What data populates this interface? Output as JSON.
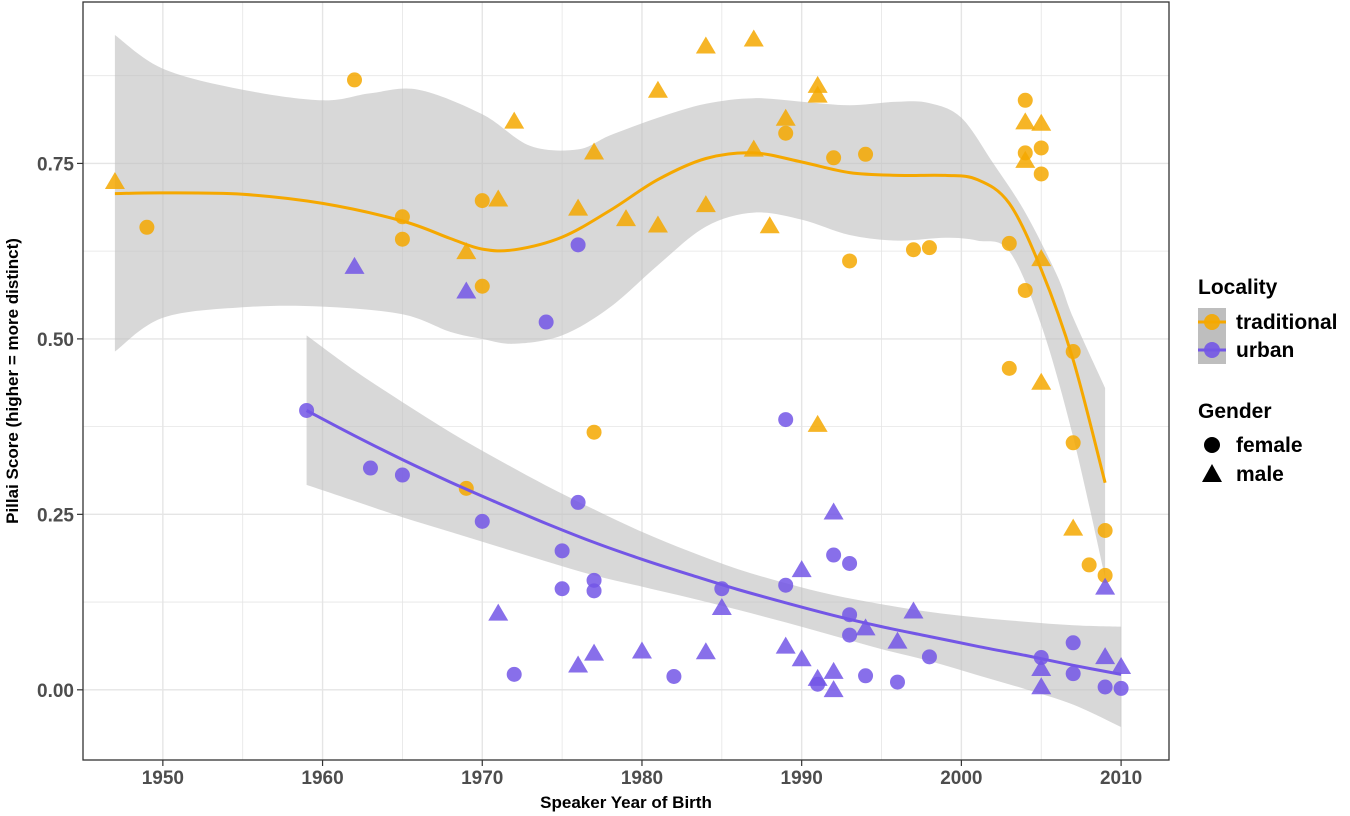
{
  "chart_data": {
    "type": "scatter",
    "title": "",
    "xlabel": "Speaker Year of Birth",
    "ylabel": "Pillai Score (higher = more distinct)",
    "xlim": [
      1945,
      2013
    ],
    "ylim": [
      -0.1,
      0.98
    ],
    "x_ticks": [
      1950,
      1960,
      1970,
      1980,
      1990,
      2000,
      2010
    ],
    "x_tick_labels": [
      "1950",
      "1960",
      "1970",
      "1980",
      "1990",
      "2000",
      "2010"
    ],
    "y_ticks": [
      0,
      0.25,
      0.5,
      0.75
    ],
    "y_tick_labels": [
      "0.00",
      "0.25",
      "0.50",
      "0.75"
    ],
    "grid": true,
    "legend_position": "right",
    "legend": {
      "locality_title": "Locality",
      "gender_title": "Gender",
      "locality_items": [
        {
          "label": "traditional",
          "color": "#F5A800"
        },
        {
          "label": "urban",
          "color": "#7356E6"
        }
      ],
      "gender_items": [
        {
          "label": "female",
          "shape": "circle"
        },
        {
          "label": "male",
          "shape": "triangle"
        }
      ]
    },
    "colors": {
      "traditional": "#F5A800",
      "urban": "#7356E6",
      "ribbon": "#BEBEBE",
      "grid": "#E5E5E5",
      "panel_border": "#333333"
    },
    "series": [
      {
        "name": "traditional",
        "points": [
          {
            "x": 1947,
            "y": 0.725,
            "g": "male"
          },
          {
            "x": 1949,
            "y": 0.659,
            "g": "female"
          },
          {
            "x": 1962,
            "y": 0.869,
            "g": "female"
          },
          {
            "x": 1965,
            "y": 0.674,
            "g": "female"
          },
          {
            "x": 1965,
            "y": 0.642,
            "g": "female"
          },
          {
            "x": 1969,
            "y": 0.625,
            "g": "male"
          },
          {
            "x": 1970,
            "y": 0.697,
            "g": "female"
          },
          {
            "x": 1970,
            "y": 0.575,
            "g": "female"
          },
          {
            "x": 1971,
            "y": 0.7,
            "g": "male"
          },
          {
            "x": 1969,
            "y": 0.287,
            "g": "female"
          },
          {
            "x": 1972,
            "y": 0.811,
            "g": "male"
          },
          {
            "x": 1976,
            "y": 0.687,
            "g": "male"
          },
          {
            "x": 1977,
            "y": 0.767,
            "g": "male"
          },
          {
            "x": 1977,
            "y": 0.367,
            "g": "female"
          },
          {
            "x": 1979,
            "y": 0.672,
            "g": "male"
          },
          {
            "x": 1981,
            "y": 0.855,
            "g": "male"
          },
          {
            "x": 1981,
            "y": 0.663,
            "g": "male"
          },
          {
            "x": 1984,
            "y": 0.918,
            "g": "male"
          },
          {
            "x": 1984,
            "y": 0.692,
            "g": "male"
          },
          {
            "x": 1987,
            "y": 0.928,
            "g": "male"
          },
          {
            "x": 1987,
            "y": 0.771,
            "g": "male"
          },
          {
            "x": 1988,
            "y": 0.662,
            "g": "male"
          },
          {
            "x": 1989,
            "y": 0.815,
            "g": "male"
          },
          {
            "x": 1989,
            "y": 0.793,
            "g": "female"
          },
          {
            "x": 1991,
            "y": 0.862,
            "g": "male"
          },
          {
            "x": 1991,
            "y": 0.848,
            "g": "male"
          },
          {
            "x": 1991,
            "y": 0.379,
            "g": "male"
          },
          {
            "x": 1992,
            "y": 0.758,
            "g": "female"
          },
          {
            "x": 1993,
            "y": 0.611,
            "g": "female"
          },
          {
            "x": 1994,
            "y": 0.763,
            "g": "female"
          },
          {
            "x": 1997,
            "y": 0.627,
            "g": "female"
          },
          {
            "x": 1998,
            "y": 0.63,
            "g": "female"
          },
          {
            "x": 2003,
            "y": 0.636,
            "g": "female"
          },
          {
            "x": 2003,
            "y": 0.458,
            "g": "female"
          },
          {
            "x": 2004,
            "y": 0.84,
            "g": "female"
          },
          {
            "x": 2004,
            "y": 0.81,
            "g": "male"
          },
          {
            "x": 2004,
            "y": 0.765,
            "g": "female"
          },
          {
            "x": 2004,
            "y": 0.755,
            "g": "male"
          },
          {
            "x": 2004,
            "y": 0.569,
            "g": "female"
          },
          {
            "x": 2005,
            "y": 0.808,
            "g": "male"
          },
          {
            "x": 2005,
            "y": 0.772,
            "g": "female"
          },
          {
            "x": 2005,
            "y": 0.735,
            "g": "female"
          },
          {
            "x": 2005,
            "y": 0.615,
            "g": "male"
          },
          {
            "x": 2005,
            "y": 0.439,
            "g": "male"
          },
          {
            "x": 2007,
            "y": 0.482,
            "g": "female"
          },
          {
            "x": 2007,
            "y": 0.352,
            "g": "female"
          },
          {
            "x": 2007,
            "y": 0.231,
            "g": "male"
          },
          {
            "x": 2008,
            "y": 0.178,
            "g": "female"
          },
          {
            "x": 2009,
            "y": 0.227,
            "g": "female"
          },
          {
            "x": 2009,
            "y": 0.163,
            "g": "female"
          }
        ],
        "smooth": [
          [
            1947,
            0.707
          ],
          [
            1950,
            0.708
          ],
          [
            1955,
            0.706
          ],
          [
            1960,
            0.693
          ],
          [
            1965,
            0.668
          ],
          [
            1968,
            0.643
          ],
          [
            1970,
            0.628
          ],
          [
            1972,
            0.627
          ],
          [
            1975,
            0.645
          ],
          [
            1978,
            0.683
          ],
          [
            1981,
            0.727
          ],
          [
            1984,
            0.757
          ],
          [
            1987,
            0.765
          ],
          [
            1990,
            0.752
          ],
          [
            1993,
            0.737
          ],
          [
            1996,
            0.733
          ],
          [
            1999,
            0.733
          ],
          [
            2001,
            0.727
          ],
          [
            2003,
            0.693
          ],
          [
            2005,
            0.599
          ],
          [
            2007,
            0.47
          ],
          [
            2009,
            0.295
          ]
        ],
        "ribbon_upper": [
          [
            1947,
            0.933
          ],
          [
            1950,
            0.885
          ],
          [
            1955,
            0.855
          ],
          [
            1960,
            0.84
          ],
          [
            1963,
            0.85
          ],
          [
            1966,
            0.855
          ],
          [
            1970,
            0.82
          ],
          [
            1973,
            0.775
          ],
          [
            1976,
            0.77
          ],
          [
            1978,
            0.79
          ],
          [
            1981,
            0.815
          ],
          [
            1984,
            0.835
          ],
          [
            1987,
            0.843
          ],
          [
            1990,
            0.838
          ],
          [
            1993,
            0.833
          ],
          [
            1996,
            0.838
          ],
          [
            1998,
            0.836
          ],
          [
            2000,
            0.815
          ],
          [
            2002,
            0.75
          ],
          [
            2004,
            0.68
          ],
          [
            2006,
            0.59
          ],
          [
            2007,
            0.53
          ],
          [
            2009,
            0.43
          ]
        ],
        "ribbon_lower": [
          [
            1947,
            0.482
          ],
          [
            1950,
            0.53
          ],
          [
            1955,
            0.545
          ],
          [
            1960,
            0.546
          ],
          [
            1965,
            0.535
          ],
          [
            1968,
            0.51
          ],
          [
            1970,
            0.5
          ],
          [
            1972,
            0.493
          ],
          [
            1975,
            0.505
          ],
          [
            1978,
            0.545
          ],
          [
            1981,
            0.605
          ],
          [
            1984,
            0.66
          ],
          [
            1987,
            0.68
          ],
          [
            1990,
            0.67
          ],
          [
            1993,
            0.648
          ],
          [
            1996,
            0.64
          ],
          [
            1999,
            0.644
          ],
          [
            2001,
            0.64
          ],
          [
            2003,
            0.625
          ],
          [
            2005,
            0.52
          ],
          [
            2007,
            0.36
          ],
          [
            2009,
            0.16
          ]
        ]
      },
      {
        "name": "urban",
        "points": [
          {
            "x": 1959,
            "y": 0.398,
            "g": "female"
          },
          {
            "x": 1962,
            "y": 0.604,
            "g": "male"
          },
          {
            "x": 1963,
            "y": 0.316,
            "g": "female"
          },
          {
            "x": 1965,
            "y": 0.306,
            "g": "female"
          },
          {
            "x": 1969,
            "y": 0.569,
            "g": "male"
          },
          {
            "x": 1970,
            "y": 0.24,
            "g": "female"
          },
          {
            "x": 1971,
            "y": 0.11,
            "g": "male"
          },
          {
            "x": 1972,
            "y": 0.022,
            "g": "female"
          },
          {
            "x": 1974,
            "y": 0.524,
            "g": "female"
          },
          {
            "x": 1975,
            "y": 0.198,
            "g": "female"
          },
          {
            "x": 1975,
            "y": 0.144,
            "g": "female"
          },
          {
            "x": 1976,
            "y": 0.634,
            "g": "female"
          },
          {
            "x": 1976,
            "y": 0.267,
            "g": "female"
          },
          {
            "x": 1976,
            "y": 0.036,
            "g": "male"
          },
          {
            "x": 1977,
            "y": 0.156,
            "g": "female"
          },
          {
            "x": 1977,
            "y": 0.141,
            "g": "female"
          },
          {
            "x": 1977,
            "y": 0.053,
            "g": "male"
          },
          {
            "x": 1980,
            "y": 0.056,
            "g": "male"
          },
          {
            "x": 1982,
            "y": 0.019,
            "g": "female"
          },
          {
            "x": 1984,
            "y": 0.055,
            "g": "male"
          },
          {
            "x": 1985,
            "y": 0.144,
            "g": "female"
          },
          {
            "x": 1985,
            "y": 0.118,
            "g": "male"
          },
          {
            "x": 1989,
            "y": 0.385,
            "g": "female"
          },
          {
            "x": 1989,
            "y": 0.149,
            "g": "female"
          },
          {
            "x": 1989,
            "y": 0.063,
            "g": "male"
          },
          {
            "x": 1990,
            "y": 0.172,
            "g": "male"
          },
          {
            "x": 1990,
            "y": 0.045,
            "g": "male"
          },
          {
            "x": 1991,
            "y": 0.017,
            "g": "male"
          },
          {
            "x": 1991,
            "y": 0.008,
            "g": "female"
          },
          {
            "x": 1992,
            "y": 0.254,
            "g": "male"
          },
          {
            "x": 1992,
            "y": 0.192,
            "g": "female"
          },
          {
            "x": 1992,
            "y": 0.027,
            "g": "male"
          },
          {
            "x": 1992,
            "y": 0.001,
            "g": "male"
          },
          {
            "x": 1993,
            "y": 0.18,
            "g": "female"
          },
          {
            "x": 1993,
            "y": 0.107,
            "g": "female"
          },
          {
            "x": 1993,
            "y": 0.078,
            "g": "female"
          },
          {
            "x": 1994,
            "y": 0.089,
            "g": "male"
          },
          {
            "x": 1994,
            "y": 0.02,
            "g": "female"
          },
          {
            "x": 1996,
            "y": 0.07,
            "g": "male"
          },
          {
            "x": 1996,
            "y": 0.011,
            "g": "female"
          },
          {
            "x": 1997,
            "y": 0.113,
            "g": "male"
          },
          {
            "x": 1998,
            "y": 0.047,
            "g": "female"
          },
          {
            "x": 2005,
            "y": 0.046,
            "g": "female"
          },
          {
            "x": 2005,
            "y": 0.031,
            "g": "male"
          },
          {
            "x": 2005,
            "y": 0.005,
            "g": "male"
          },
          {
            "x": 2007,
            "y": 0.067,
            "g": "female"
          },
          {
            "x": 2007,
            "y": 0.023,
            "g": "female"
          },
          {
            "x": 2009,
            "y": 0.147,
            "g": "male"
          },
          {
            "x": 2009,
            "y": 0.048,
            "g": "male"
          },
          {
            "x": 2009,
            "y": 0.004,
            "g": "female"
          },
          {
            "x": 2010,
            "y": 0.034,
            "g": "male"
          },
          {
            "x": 2010,
            "y": 0.002,
            "g": "female"
          }
        ],
        "smooth": [
          [
            1959,
            0.398
          ],
          [
            1962,
            0.362
          ],
          [
            1965,
            0.328
          ],
          [
            1968,
            0.296
          ],
          [
            1971,
            0.266
          ],
          [
            1974,
            0.237
          ],
          [
            1977,
            0.21
          ],
          [
            1980,
            0.186
          ],
          [
            1983,
            0.164
          ],
          [
            1986,
            0.143
          ],
          [
            1989,
            0.124
          ],
          [
            1992,
            0.106
          ],
          [
            1995,
            0.09
          ],
          [
            1998,
            0.076
          ],
          [
            2001,
            0.062
          ],
          [
            2004,
            0.049
          ],
          [
            2007,
            0.035
          ],
          [
            2010,
            0.022
          ]
        ],
        "ribbon_upper": [
          [
            1959,
            0.505
          ],
          [
            1962,
            0.455
          ],
          [
            1965,
            0.41
          ],
          [
            1968,
            0.367
          ],
          [
            1971,
            0.328
          ],
          [
            1974,
            0.291
          ],
          [
            1977,
            0.257
          ],
          [
            1980,
            0.225
          ],
          [
            1983,
            0.197
          ],
          [
            1986,
            0.172
          ],
          [
            1989,
            0.152
          ],
          [
            1992,
            0.135
          ],
          [
            1995,
            0.122
          ],
          [
            1998,
            0.111
          ],
          [
            2001,
            0.103
          ],
          [
            2004,
            0.097
          ],
          [
            2007,
            0.092
          ],
          [
            2010,
            0.09
          ]
        ],
        "ribbon_lower": [
          [
            1959,
            0.292
          ],
          [
            1962,
            0.269
          ],
          [
            1965,
            0.246
          ],
          [
            1968,
            0.225
          ],
          [
            1971,
            0.204
          ],
          [
            1974,
            0.183
          ],
          [
            1977,
            0.163
          ],
          [
            1980,
            0.147
          ],
          [
            1983,
            0.131
          ],
          [
            1986,
            0.114
          ],
          [
            1989,
            0.096
          ],
          [
            1992,
            0.077
          ],
          [
            1995,
            0.058
          ],
          [
            1998,
            0.041
          ],
          [
            2001,
            0.021
          ],
          [
            2004,
            0.001
          ],
          [
            2007,
            -0.021
          ],
          [
            2010,
            -0.053
          ]
        ]
      }
    ]
  }
}
